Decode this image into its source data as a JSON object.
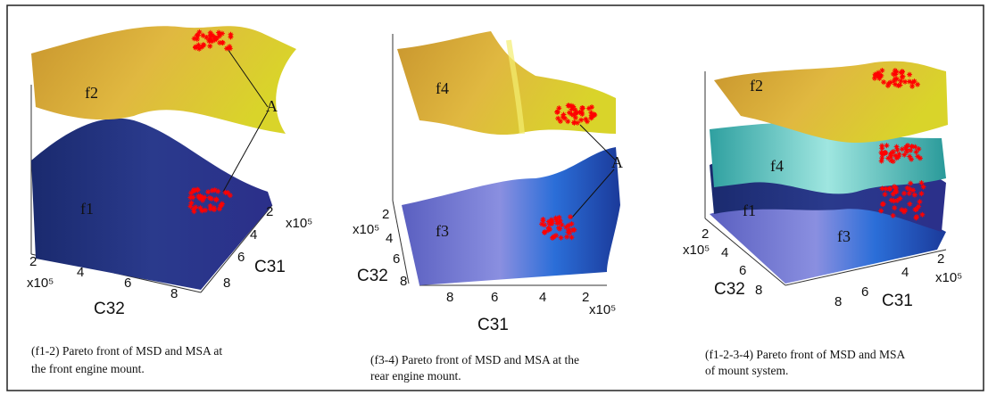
{
  "panels": [
    {
      "surface_labels": [
        "f2",
        "f1"
      ],
      "annotation": "A",
      "axes": [
        {
          "label": "C32",
          "ticks": [
            "2",
            "4",
            "6",
            "8"
          ],
          "multiplier": "x10⁵"
        },
        {
          "label": "C31",
          "ticks": [
            "2",
            "4",
            "6",
            "8"
          ],
          "multiplier": "x10⁵"
        }
      ],
      "caption": [
        "(f1-2) Pareto front of MSD and MSA at",
        "the front engine mount."
      ]
    },
    {
      "surface_labels": [
        "f4",
        "f3"
      ],
      "annotation": "A",
      "axes": [
        {
          "label": "C32",
          "ticks": [
            "2",
            "4",
            "6",
            "8"
          ],
          "multiplier": "x10⁵"
        },
        {
          "label": "C31",
          "ticks": [
            "8",
            "6",
            "4",
            "2"
          ],
          "multiplier": "x10⁵"
        }
      ],
      "caption": [
        "(f3-4) Pareto front of MSD and MSA at the",
        "rear engine mount."
      ]
    },
    {
      "surface_labels": [
        "f2",
        "f4",
        "f1",
        "f3"
      ],
      "axes": [
        {
          "label": "C32",
          "ticks": [
            "2",
            "4",
            "6",
            "8"
          ],
          "multiplier": "x10⁵"
        },
        {
          "label": "C31",
          "ticks": [
            "8",
            "6",
            "4",
            "2"
          ],
          "multiplier": "x10⁵"
        }
      ],
      "caption": [
        "(f1-2-3-4) Pareto front of MSD and MSA",
        "of mount system."
      ]
    }
  ]
}
